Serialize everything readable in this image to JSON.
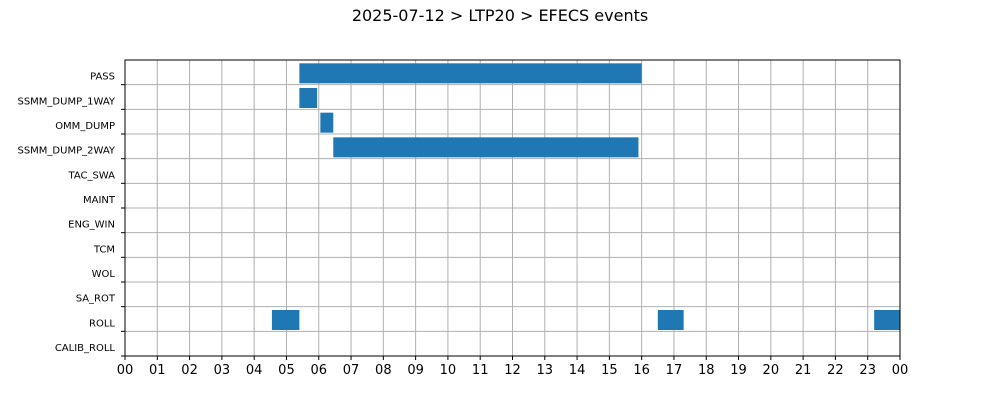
{
  "chart_data": {
    "type": "bar",
    "orientation": "horizontal",
    "title": "2025-07-12 > LTP20 > EFECS events",
    "xlabel": "",
    "ylabel": "",
    "x_range_hours": [
      0,
      24
    ],
    "x_tick_labels": [
      "00",
      "01",
      "02",
      "03",
      "04",
      "05",
      "06",
      "07",
      "08",
      "09",
      "10",
      "11",
      "12",
      "13",
      "14",
      "15",
      "16",
      "17",
      "18",
      "19",
      "20",
      "21",
      "22",
      "23",
      "00"
    ],
    "categories": [
      "PASS",
      "SSMM_DUMP_1WAY",
      "OMM_DUMP",
      "SSMM_DUMP_2WAY",
      "TAC_SWA",
      "MAINT",
      "ENG_WIN",
      "TCM",
      "WOL",
      "SA_ROT",
      "ROLL",
      "CALIB_ROLL"
    ],
    "grid": true,
    "bar_color": "#1f77b4",
    "events": [
      {
        "category": "PASS",
        "start": 5.4,
        "end": 16.0
      },
      {
        "category": "SSMM_DUMP_1WAY",
        "start": 5.4,
        "end": 5.95
      },
      {
        "category": "OMM_DUMP",
        "start": 6.05,
        "end": 6.45
      },
      {
        "category": "SSMM_DUMP_2WAY",
        "start": 6.45,
        "end": 15.9
      },
      {
        "category": "ROLL",
        "start": 4.55,
        "end": 5.4
      },
      {
        "category": "ROLL",
        "start": 16.5,
        "end": 17.3
      },
      {
        "category": "ROLL",
        "start": 23.2,
        "end": 24.0
      }
    ]
  }
}
